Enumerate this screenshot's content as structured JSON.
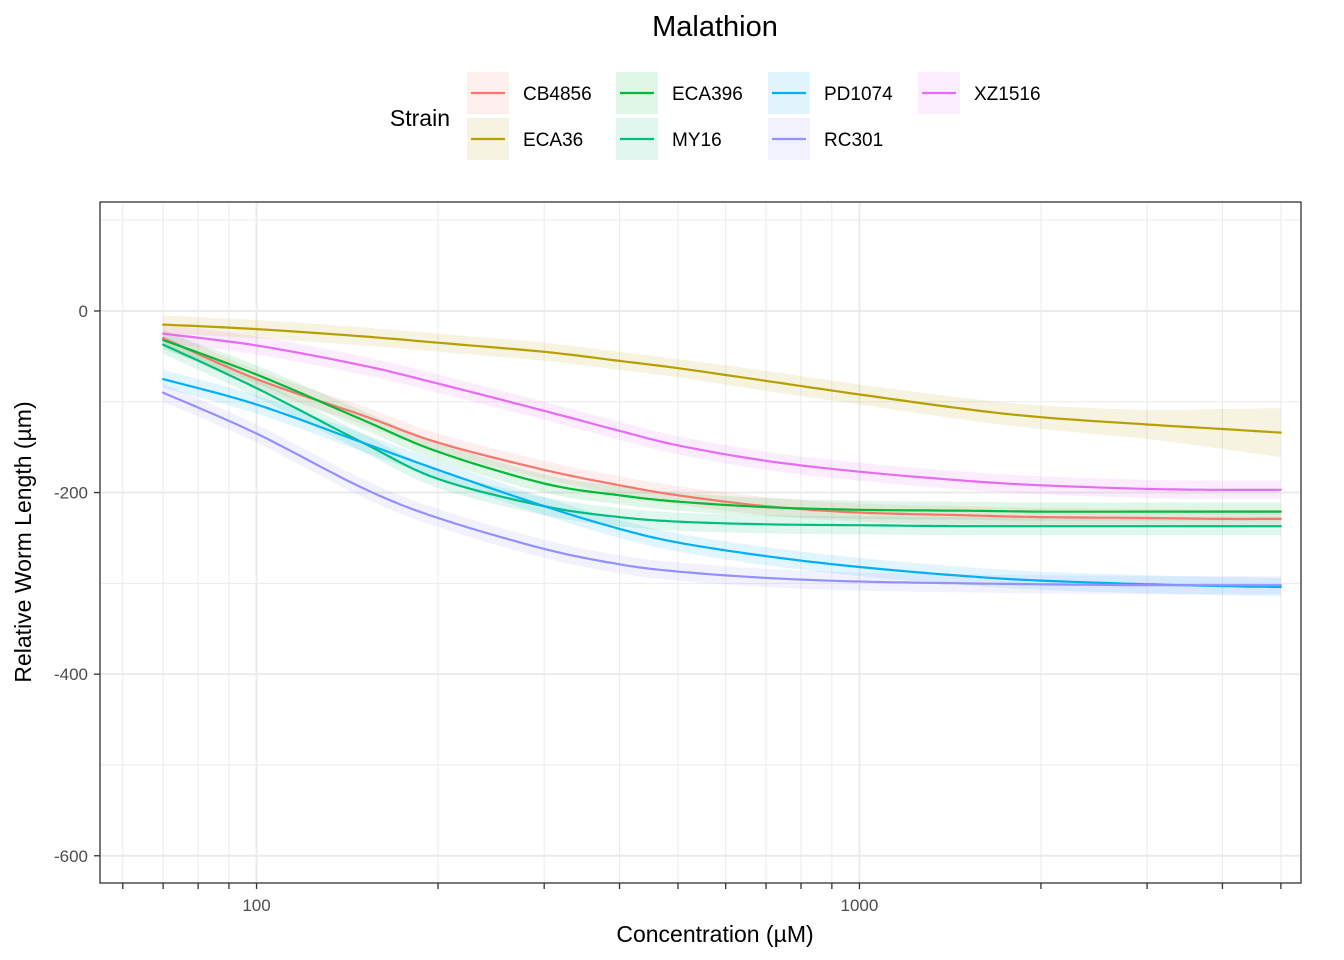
{
  "chart_data": {
    "type": "line",
    "title": "Malathion",
    "xlabel": "Concentration (µM)",
    "ylabel": "Relative Worm Length (µm)",
    "x_scale": "log10",
    "xlim": [
      55,
      5400
    ],
    "ylim": [
      -630,
      120
    ],
    "x_ticks": [
      100,
      1000
    ],
    "x_tick_labels": [
      "100",
      "1000"
    ],
    "y_ticks": [
      0,
      -200,
      -400,
      -600
    ],
    "y_tick_labels": [
      "0",
      "-200",
      "-400",
      "-600"
    ],
    "grid": true,
    "legend": {
      "title": "Strain",
      "position": "top",
      "ncol": 4
    },
    "ribbon_halfwidth_default": 10,
    "series": [
      {
        "name": "CB4856",
        "color": "#F8766D",
        "x": [
          70,
          100,
          150,
          200,
          300,
          400,
          500,
          700,
          1000,
          1500,
          2000,
          3000,
          4000,
          5000
        ],
        "y": [
          -30,
          -75,
          -115,
          -145,
          -175,
          -192,
          -203,
          -215,
          -222,
          -225,
          -227,
          -228,
          -229,
          -229
        ]
      },
      {
        "name": "ECA36",
        "color": "#B79F00",
        "x": [
          70,
          100,
          150,
          200,
          300,
          400,
          500,
          700,
          1000,
          1500,
          2000,
          3000,
          4000,
          5000
        ],
        "y": [
          -15,
          -20,
          -28,
          -35,
          -45,
          -55,
          -63,
          -77,
          -92,
          -108,
          -117,
          -125,
          -130,
          -134
        ],
        "ribbon_halfwidth": [
          10,
          10,
          10,
          10,
          10,
          10,
          10,
          11,
          11,
          12,
          13,
          16,
          22,
          27
        ]
      },
      {
        "name": "ECA396",
        "color": "#00BA38",
        "x": [
          70,
          100,
          150,
          200,
          300,
          400,
          500,
          700,
          1000,
          1500,
          2000,
          3000,
          4000,
          5000
        ],
        "y": [
          -32,
          -70,
          -120,
          -155,
          -190,
          -203,
          -210,
          -216,
          -219,
          -220,
          -221,
          -221,
          -221,
          -221
        ]
      },
      {
        "name": "MY16",
        "color": "#00BF7D",
        "x": [
          70,
          100,
          150,
          200,
          300,
          400,
          500,
          700,
          1000,
          1500,
          2000,
          3000,
          4000,
          5000
        ],
        "y": [
          -37,
          -85,
          -145,
          -185,
          -215,
          -227,
          -232,
          -235,
          -236,
          -237,
          -237,
          -237,
          -237,
          -237
        ]
      },
      {
        "name": "PD1074",
        "color": "#00B0F6",
        "x": [
          70,
          100,
          150,
          200,
          300,
          400,
          500,
          700,
          1000,
          1500,
          2000,
          3000,
          4000,
          5000
        ],
        "y": [
          -75,
          -103,
          -145,
          -175,
          -215,
          -240,
          -255,
          -270,
          -282,
          -292,
          -297,
          -301,
          -303,
          -304
        ]
      },
      {
        "name": "RC301",
        "color": "#9590FF",
        "x": [
          70,
          100,
          150,
          200,
          300,
          400,
          500,
          700,
          1000,
          1500,
          2000,
          3000,
          4000,
          5000
        ],
        "y": [
          -90,
          -135,
          -195,
          -228,
          -262,
          -279,
          -287,
          -294,
          -298,
          -300,
          -301,
          -302,
          -302,
          -302
        ]
      },
      {
        "name": "XZ1516",
        "color": "#E76BF3",
        "x": [
          70,
          100,
          150,
          200,
          300,
          400,
          500,
          700,
          1000,
          1500,
          2000,
          3000,
          4000,
          5000
        ],
        "y": [
          -25,
          -38,
          -60,
          -80,
          -110,
          -132,
          -148,
          -165,
          -177,
          -187,
          -192,
          -196,
          -197,
          -197
        ]
      }
    ]
  }
}
